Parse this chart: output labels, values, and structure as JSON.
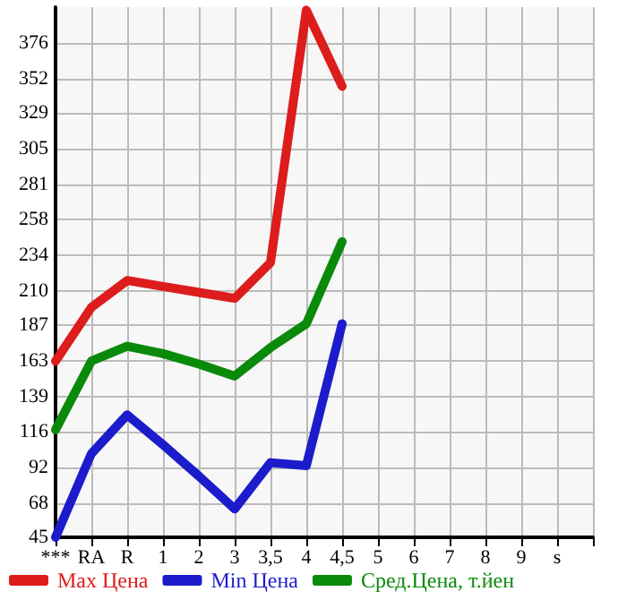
{
  "chart_data": {
    "type": "line",
    "categories": [
      "***",
      "RA",
      "R",
      "1",
      "2",
      "3",
      "3,5",
      "4",
      "4,5",
      "5",
      "6",
      "7",
      "8",
      "9",
      "s",
      null
    ],
    "series": [
      {
        "name": "Max Цена",
        "color": "#dd1c1c",
        "values": [
          163,
          199,
          217,
          213,
          209,
          205,
          229,
          398,
          347,
          null,
          null,
          null,
          null,
          null,
          null,
          null
        ]
      },
      {
        "name": "Min Цена",
        "color": "#1c1ccc",
        "values": [
          45,
          101,
          127,
          107,
          86,
          64,
          95,
          93,
          188,
          null,
          null,
          null,
          null,
          null,
          null,
          null
        ]
      },
      {
        "name": "Сред.Цена, т.йен",
        "color": "#0a8a0a",
        "values": [
          117,
          163,
          173,
          168,
          161,
          153,
          172,
          188,
          243,
          null,
          null,
          null,
          null,
          null,
          null,
          null
        ]
      }
    ],
    "ylim": [
      45,
      400
    ],
    "yticks": [
      45,
      68,
      92,
      116,
      139,
      163,
      187,
      210,
      234,
      258,
      281,
      305,
      329,
      352,
      376
    ],
    "grid": true,
    "legend": "bottom",
    "marker": "none",
    "line_style": "solid"
  }
}
